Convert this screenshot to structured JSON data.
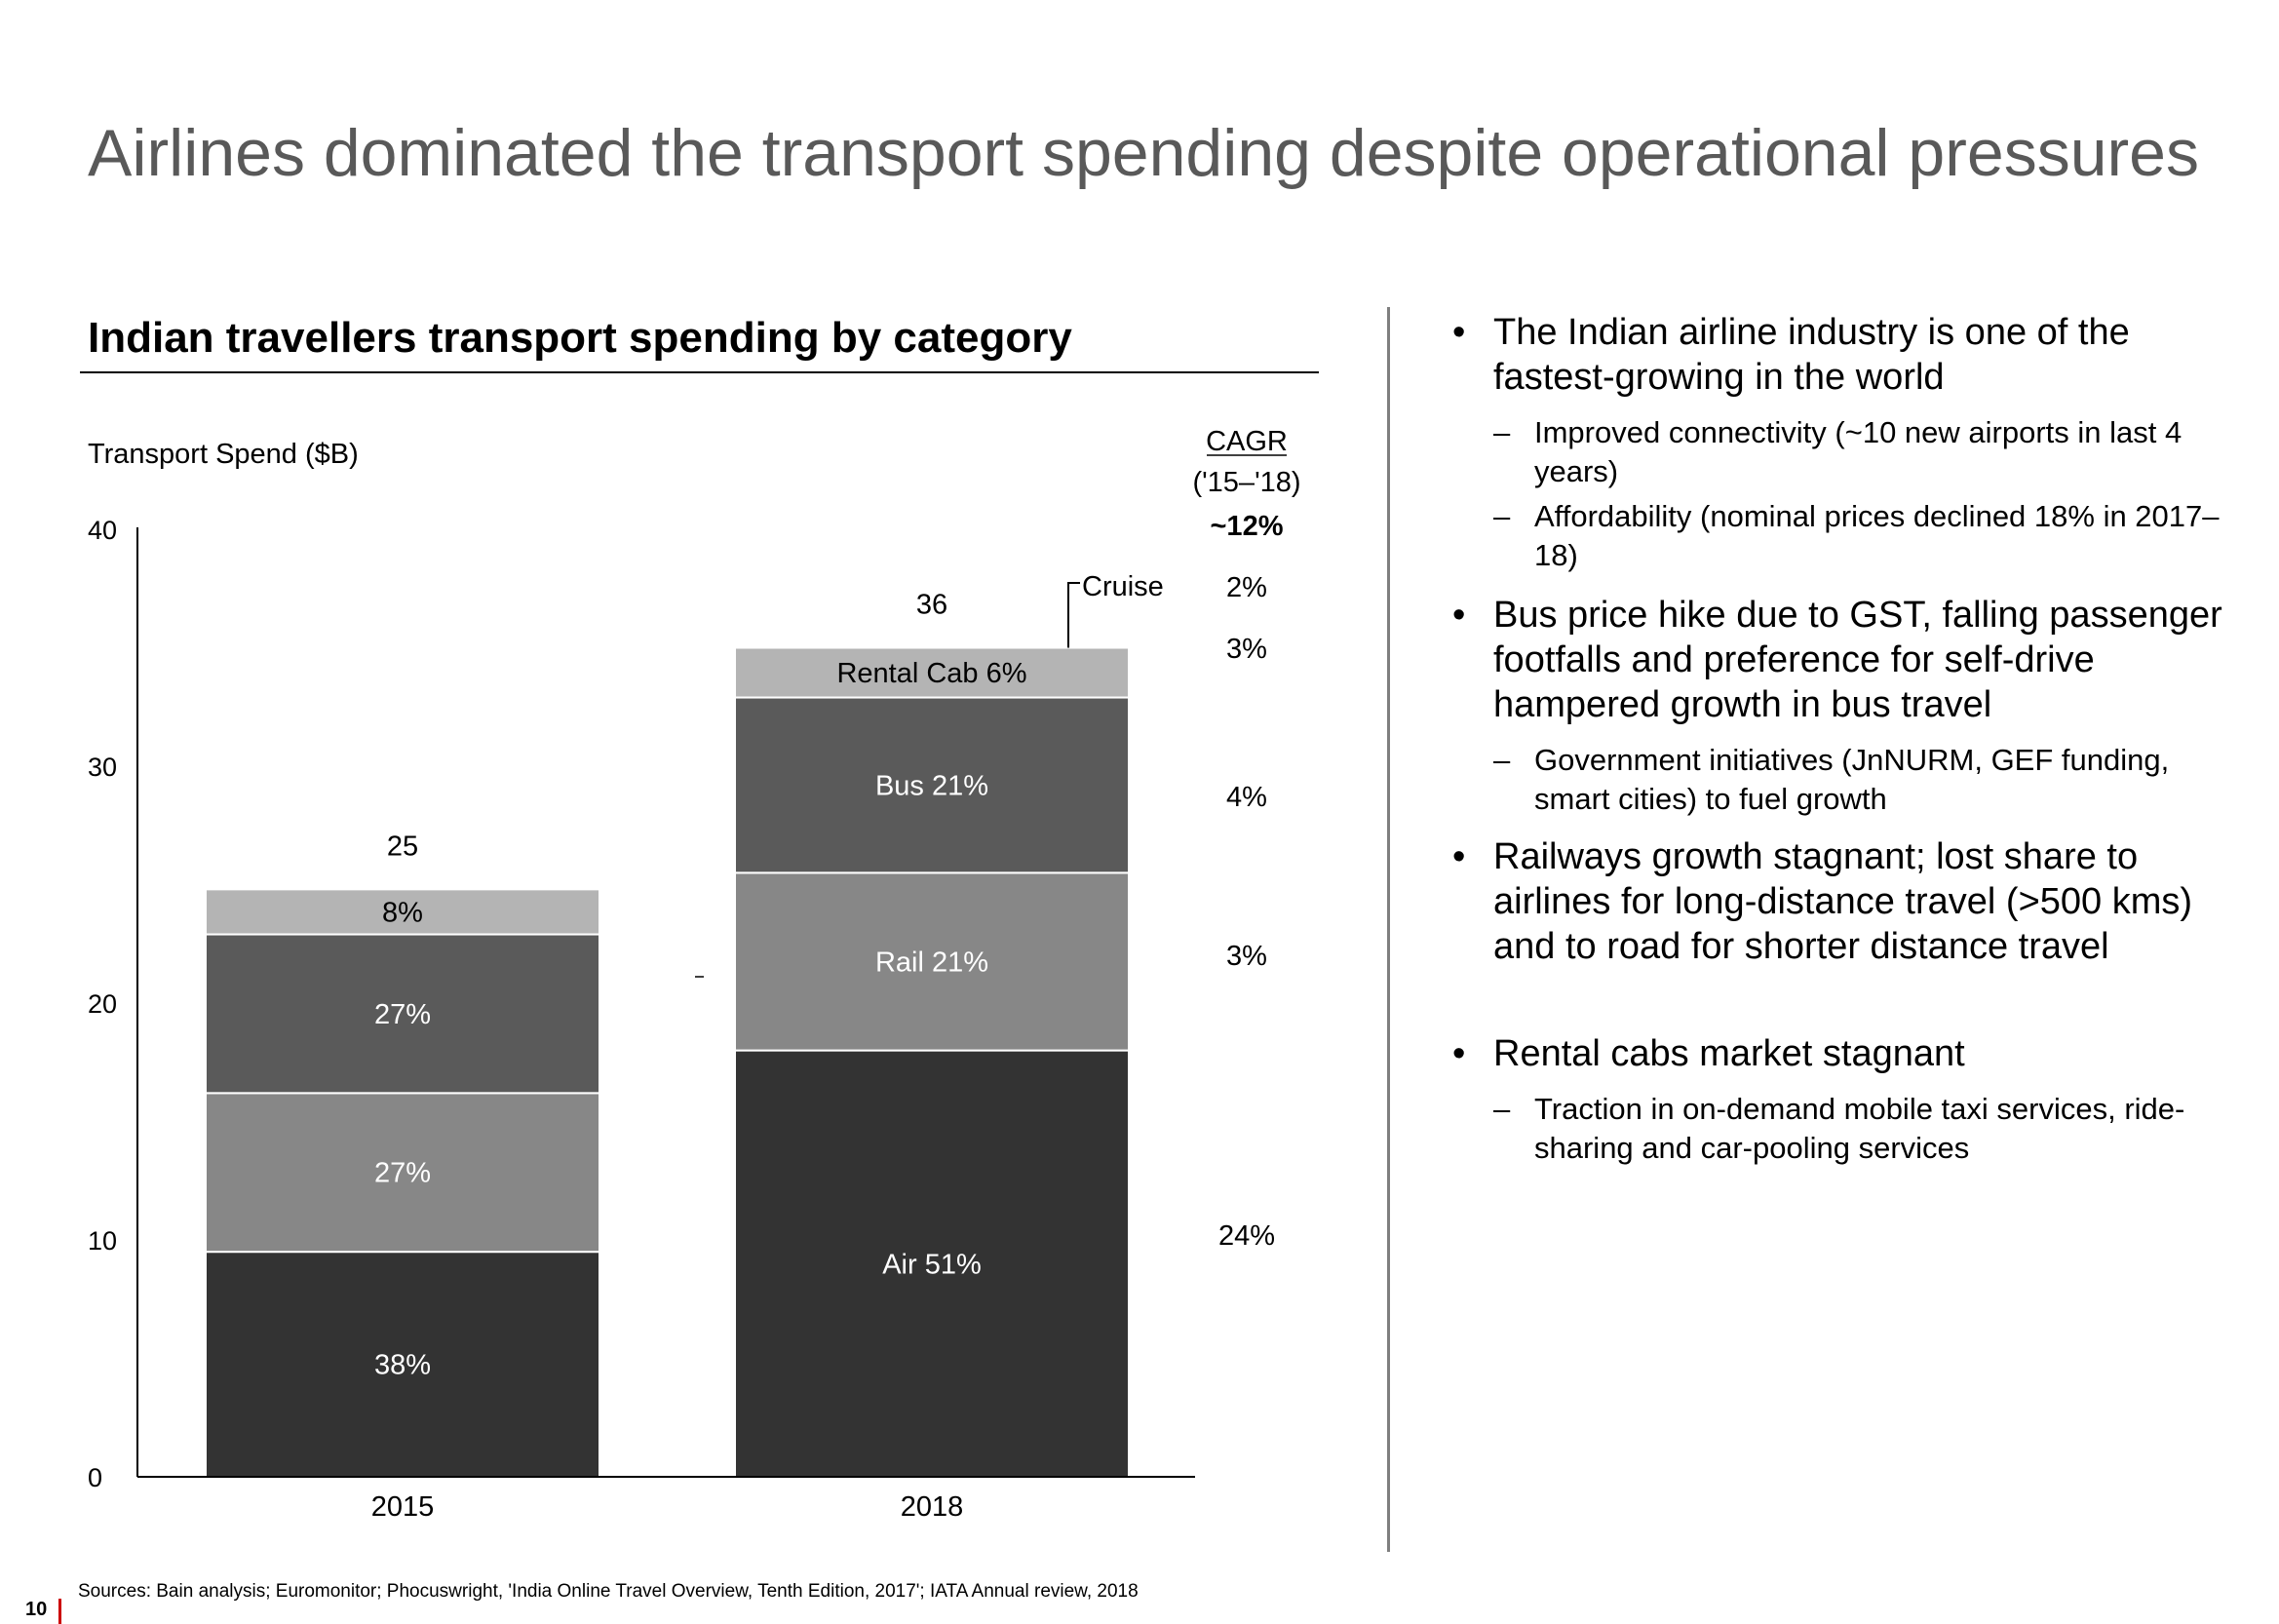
{
  "slide": {
    "title": "Airlines dominated the transport spending despite operational pressures",
    "page_number": "10",
    "sources": "Sources: Bain analysis; Euromonitor; Phocuswright, 'India Online Travel Overview, Tenth Edition, 2017'; IATA Annual review, 2018"
  },
  "chart_data": {
    "type": "bar",
    "stacked": true,
    "title": "Indian travellers transport spending by category",
    "ylabel": "Transport Spend ($B)",
    "ylim": [
      0,
      40
    ],
    "yticks": [
      "0",
      "10",
      "20",
      "30",
      "40"
    ],
    "categories": [
      "2015",
      "2018"
    ],
    "totals": [
      "25",
      "36"
    ],
    "series": [
      {
        "name": "Air",
        "values": [
          9.5,
          18.0
        ],
        "labels": [
          "38%",
          "Air 51%"
        ],
        "color": "#333333",
        "text_color": "#ffffff"
      },
      {
        "name": "Rail",
        "values": [
          6.7,
          7.5
        ],
        "labels": [
          "27%",
          "Rail 21%"
        ],
        "color": "#878787",
        "text_color": "#ffffff"
      },
      {
        "name": "Bus",
        "values": [
          6.7,
          7.4
        ],
        "labels": [
          "27%",
          "Bus 21%"
        ],
        "color": "#5a5a5a",
        "text_color": "#ffffff"
      },
      {
        "name": "Rental Cab",
        "values": [
          1.9,
          2.1
        ],
        "labels": [
          "8%",
          "Rental Cab 6%"
        ],
        "color": "#b4b4b4",
        "text_color": "#000000"
      }
    ],
    "cruise_label": "Cruise",
    "cagr": {
      "header": "CAGR",
      "period": "('15–'18)",
      "total": "~12%",
      "values": [
        "2%",
        "3%",
        "4%",
        "3%",
        "24%"
      ]
    }
  },
  "bullets": [
    {
      "text": "The Indian airline industry is one of the fastest-growing in the world",
      "sub": [
        "Improved connectivity (~10 new airports in last 4 years)",
        "Affordability (nominal prices declined 18% in 2017–18)"
      ]
    },
    {
      "text": "Bus price hike due to GST, falling passenger footfalls and preference for self-drive hampered growth in bus travel",
      "sub": [
        "Government initiatives (JnNURM, GEF funding, smart cities) to fuel growth"
      ]
    },
    {
      "text": "Railways growth stagnant; lost share to airlines for long-distance travel (>500 kms) and to road for shorter distance travel",
      "sub": []
    },
    {
      "text": "Rental cabs market stagnant",
      "sub": [
        "Traction in on-demand mobile taxi services, ride-sharing and car-pooling services"
      ]
    }
  ],
  "bullet_marker": "•",
  "sub_marker": "–"
}
